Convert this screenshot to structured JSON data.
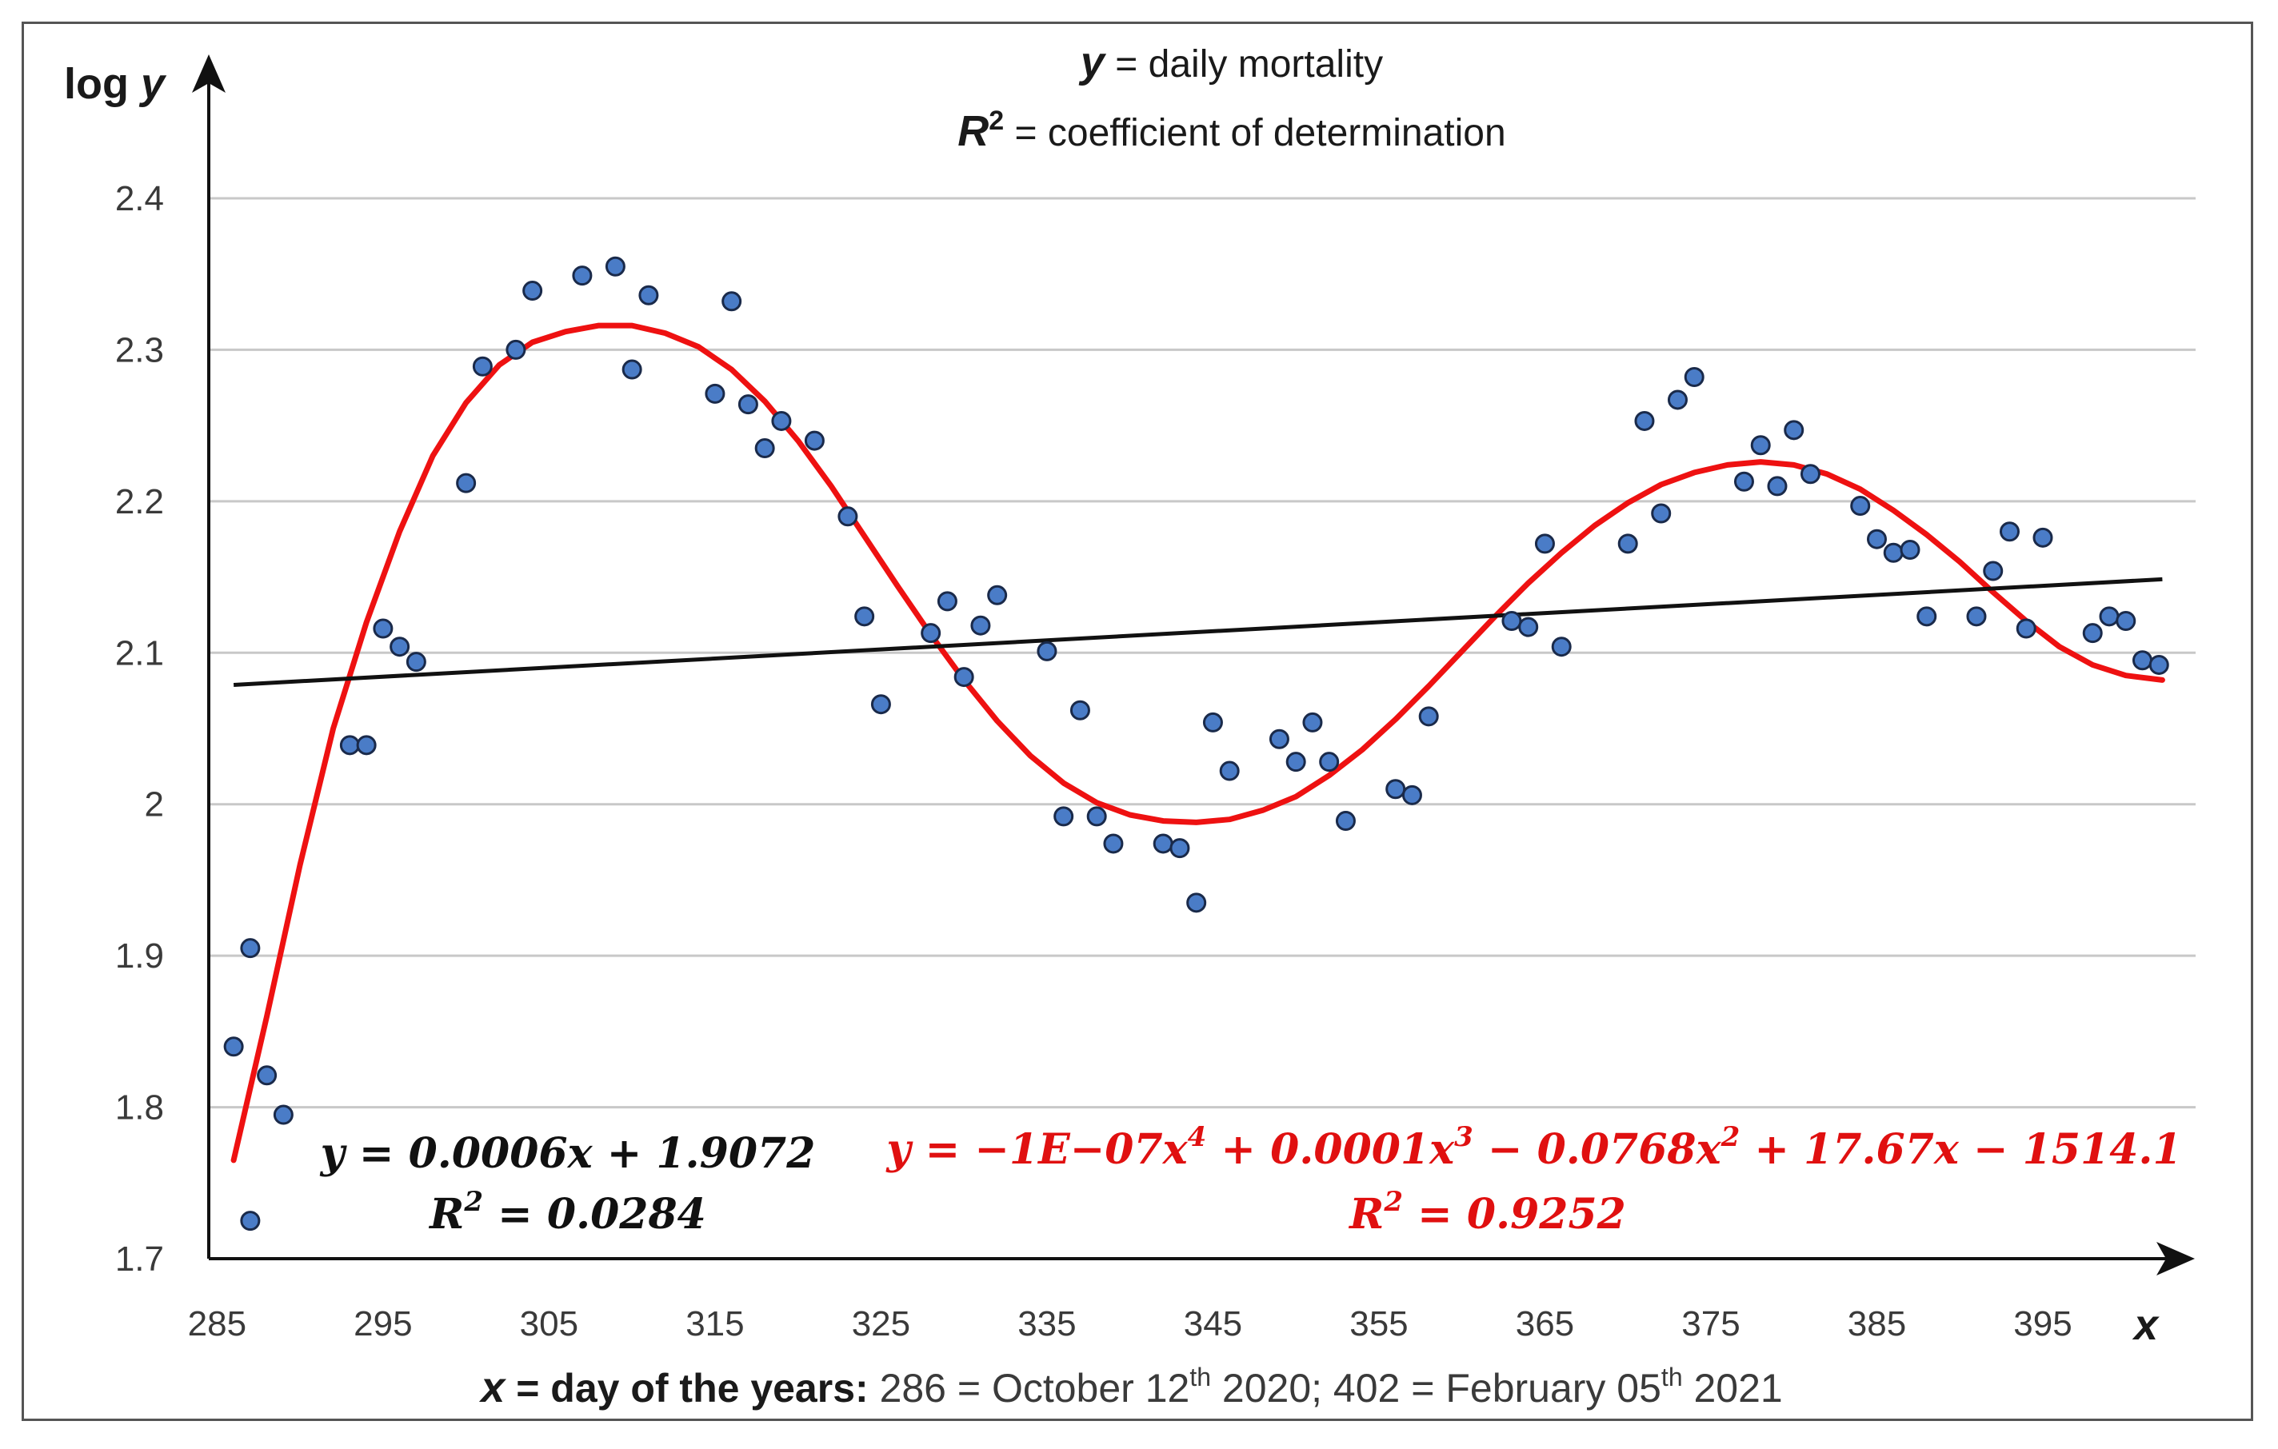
{
  "colors": {
    "point_fill": "#4a7cc7",
    "point_stroke": "#1a2a4a",
    "poly_fit": "#ee1111",
    "linear_fit": "#111111",
    "grid": "#c8c8c8",
    "equation_red": "#e01010"
  },
  "legend": {
    "y_def_var": "y",
    "y_def_text": " = daily mortality",
    "r2_def_var": "R",
    "r2_def_sup": "2",
    "r2_def_text": " = coefficient of determination"
  },
  "caption": {
    "x_var": "x",
    "bold_text": " = day of the years:",
    "text_before_sup1": "  286 = October 12",
    "sup1": "th",
    "text_after_sup1": " 2020; 402 = February 05",
    "sup2": "th",
    "text_after_sup2": " 2021"
  },
  "linear_equation": {
    "line1": "y = 0.0006x + 1.9072",
    "line2_r": "R",
    "line2_sup": "2",
    "line2_rest": " = 0.0284"
  },
  "poly_equation": {
    "line1_pre": "y = −1E−07x",
    "sup_a": "4",
    "mid_a": " + 0.0001x",
    "sup_b": "3",
    "mid_b": " − 0.0768x",
    "sup_c": "2",
    "line1_post": " + 17.67x − 1514.1",
    "line2_r": "R",
    "line2_sup": "2",
    "line2_rest": " = 0.9252"
  },
  "chart_data": {
    "type": "scatter",
    "ylabel_prefix": "log ",
    "ylabel_var": "y",
    "xlabel": "x",
    "xlim": [
      284.5,
      403
    ],
    "ylim": [
      1.7,
      2.4
    ],
    "y_axis_top": 2.49,
    "x_ticks": [
      "285",
      "295",
      "305",
      "315",
      "325",
      "335",
      "345",
      "355",
      "365",
      "375",
      "385",
      "395"
    ],
    "y_ticks": [
      "1.7",
      "1.8",
      "1.9",
      "2",
      "2.1",
      "2.2",
      "2.3",
      "2.4"
    ],
    "x_tick_values": [
      285,
      295,
      305,
      315,
      325,
      335,
      345,
      355,
      365,
      375,
      385,
      395
    ],
    "y_tick_values": [
      1.7,
      1.8,
      1.9,
      2.0,
      2.1,
      2.2,
      2.3,
      2.4
    ],
    "grid": true,
    "points": [
      [
        286,
        1.84
      ],
      [
        287,
        1.905
      ],
      [
        287,
        1.725
      ],
      [
        288,
        1.821
      ],
      [
        289,
        1.795
      ],
      [
        293,
        2.039
      ],
      [
        294,
        2.039
      ],
      [
        295,
        2.116
      ],
      [
        296,
        2.104
      ],
      [
        297,
        2.094
      ],
      [
        300,
        2.212
      ],
      [
        301,
        2.289
      ],
      [
        303,
        2.3
      ],
      [
        304,
        2.339
      ],
      [
        307,
        2.349
      ],
      [
        309,
        2.355
      ],
      [
        310,
        2.287
      ],
      [
        311,
        2.336
      ],
      [
        315,
        2.271
      ],
      [
        316,
        2.332
      ],
      [
        317,
        2.264
      ],
      [
        318,
        2.235
      ],
      [
        319,
        2.253
      ],
      [
        321,
        2.24
      ],
      [
        323,
        2.19
      ],
      [
        324,
        2.124
      ],
      [
        325,
        2.066
      ],
      [
        328,
        2.113
      ],
      [
        329,
        2.134
      ],
      [
        330,
        2.084
      ],
      [
        331,
        2.118
      ],
      [
        332,
        2.138
      ],
      [
        335,
        2.101
      ],
      [
        336,
        1.992
      ],
      [
        337,
        2.062
      ],
      [
        338,
        1.992
      ],
      [
        339,
        1.974
      ],
      [
        342,
        1.974
      ],
      [
        343,
        1.971
      ],
      [
        344,
        1.935
      ],
      [
        345,
        2.054
      ],
      [
        346,
        2.022
      ],
      [
        349,
        2.043
      ],
      [
        350,
        2.028
      ],
      [
        351,
        2.054
      ],
      [
        352,
        2.028
      ],
      [
        353,
        1.989
      ],
      [
        356,
        2.01
      ],
      [
        357,
        2.006
      ],
      [
        358,
        2.058
      ],
      [
        363,
        2.121
      ],
      [
        364,
        2.117
      ],
      [
        365,
        2.172
      ],
      [
        366,
        2.104
      ],
      [
        370,
        2.172
      ],
      [
        371,
        2.253
      ],
      [
        372,
        2.192
      ],
      [
        373,
        2.267
      ],
      [
        374,
        2.282
      ],
      [
        377,
        2.213
      ],
      [
        378,
        2.237
      ],
      [
        379,
        2.21
      ],
      [
        380,
        2.247
      ],
      [
        381,
        2.218
      ],
      [
        384,
        2.197
      ],
      [
        385,
        2.175
      ],
      [
        386,
        2.166
      ],
      [
        387,
        2.168
      ],
      [
        388,
        2.124
      ],
      [
        391,
        2.124
      ],
      [
        392,
        2.154
      ],
      [
        393,
        2.18
      ],
      [
        394,
        2.116
      ],
      [
        395,
        2.176
      ],
      [
        398,
        2.113
      ],
      [
        399,
        2.124
      ],
      [
        400,
        2.121
      ],
      [
        401,
        2.095
      ],
      [
        402,
        2.092
      ]
    ],
    "linear_fit": {
      "slope": 0.0006,
      "intercept": 1.9072,
      "x_range": [
        286,
        402.2
      ],
      "label": "y = 0.0006x + 1.9072",
      "r2": "R2 = 0.0284"
    },
    "poly_fit": {
      "x_range": [
        286,
        402.2
      ],
      "curve": [
        [
          286,
          1.765
        ],
        [
          288,
          1.86
        ],
        [
          290,
          1.96
        ],
        [
          292,
          2.05
        ],
        [
          294,
          2.12
        ],
        [
          296,
          2.18
        ],
        [
          298,
          2.23
        ],
        [
          300,
          2.265
        ],
        [
          302,
          2.29
        ],
        [
          304,
          2.305
        ],
        [
          306,
          2.312
        ],
        [
          308,
          2.316
        ],
        [
          310,
          2.316
        ],
        [
          312,
          2.311
        ],
        [
          314,
          2.302
        ],
        [
          316,
          2.287
        ],
        [
          318,
          2.266
        ],
        [
          320,
          2.24
        ],
        [
          322,
          2.21
        ],
        [
          324,
          2.177
        ],
        [
          326,
          2.144
        ],
        [
          328,
          2.112
        ],
        [
          330,
          2.082
        ],
        [
          332,
          2.055
        ],
        [
          334,
          2.032
        ],
        [
          336,
          2.014
        ],
        [
          338,
          2.001
        ],
        [
          340,
          1.993
        ],
        [
          342,
          1.989
        ],
        [
          344,
          1.988
        ],
        [
          346,
          1.99
        ],
        [
          348,
          1.996
        ],
        [
          350,
          2.005
        ],
        [
          352,
          2.019
        ],
        [
          354,
          2.036
        ],
        [
          356,
          2.056
        ],
        [
          358,
          2.078
        ],
        [
          360,
          2.101
        ],
        [
          362,
          2.124
        ],
        [
          364,
          2.146
        ],
        [
          366,
          2.166
        ],
        [
          368,
          2.184
        ],
        [
          370,
          2.199
        ],
        [
          372,
          2.211
        ],
        [
          374,
          2.219
        ],
        [
          376,
          2.224
        ],
        [
          378,
          2.226
        ],
        [
          380,
          2.224
        ],
        [
          382,
          2.218
        ],
        [
          384,
          2.208
        ],
        [
          386,
          2.194
        ],
        [
          388,
          2.178
        ],
        [
          390,
          2.16
        ],
        [
          392,
          2.14
        ],
        [
          394,
          2.121
        ],
        [
          396,
          2.104
        ],
        [
          398,
          2.092
        ],
        [
          400,
          2.085
        ],
        [
          402.2,
          2.082
        ]
      ],
      "label": "y = -1E-07x4 + 0.0001x3 - 0.0768x2 + 17.67x - 1514.1",
      "r2": "R2 = 0.9252"
    }
  }
}
